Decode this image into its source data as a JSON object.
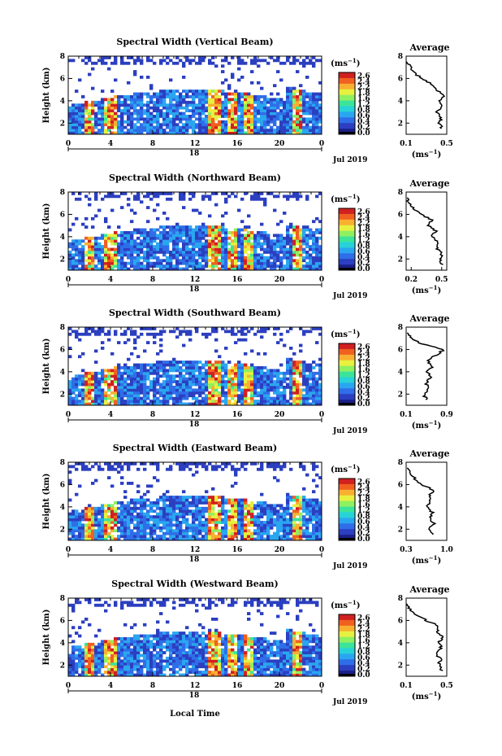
{
  "figure": {
    "colorbar": {
      "unit": "(ms",
      "unit_sup": "−1",
      "unit_close": ")",
      "ticks": [
        "2.6",
        "2.4",
        "2.2",
        "1.8",
        "1.6",
        "1.2",
        "0.8",
        "0.6",
        "0.4",
        "0.2",
        "0.0"
      ]
    },
    "date_label": "Jul 2019",
    "xlabel_bottom": "Local Time",
    "colors": {
      "background_fill": "#2a3bb0",
      "colormap": [
        "#1a1f8a",
        "#2b3fc0",
        "#2f6ee8",
        "#2aa6f0",
        "#27d2d8",
        "#3ce49a",
        "#8ff060",
        "#e8f040",
        "#f8b030",
        "#f06020",
        "#d02020"
      ]
    }
  },
  "chart_data": [
    {
      "type": "heatmap",
      "title": "Spectral Width (Vertical Beam)",
      "ylabel": "Height (km)",
      "yticks": [
        "2",
        "4",
        "6",
        "8"
      ],
      "xticks": [
        "0",
        "4",
        "8",
        "12",
        "16",
        "20",
        "0"
      ],
      "xsub": "18",
      "date_label": "Jul 2019",
      "ylim": [
        1,
        8
      ],
      "xlim": [
        0,
        24
      ],
      "profile": {
        "title": "Average",
        "xlabel": "(ms",
        "xlabel_sup": "−1",
        "xlabel_close": ")",
        "xticks": [
          "0.1",
          "0.5"
        ],
        "xlim": [
          0.1,
          0.5
        ],
        "yticks": [
          "2",
          "4",
          "6",
          "8"
        ],
        "points": [
          [
            0.45,
            1.5
          ],
          [
            0.43,
            2.0
          ],
          [
            0.44,
            2.5
          ],
          [
            0.4,
            3.0
          ],
          [
            0.45,
            3.5
          ],
          [
            0.42,
            4.0
          ],
          [
            0.48,
            4.5
          ],
          [
            0.4,
            5.0
          ],
          [
            0.35,
            5.5
          ],
          [
            0.25,
            6.0
          ],
          [
            0.18,
            6.5
          ],
          [
            0.14,
            7.0
          ],
          [
            0.11,
            7.5
          ]
        ]
      }
    },
    {
      "type": "heatmap",
      "title": "Spectral Width (Northward Beam)",
      "ylabel": "Height (km)",
      "yticks": [
        "2",
        "4",
        "6",
        "8"
      ],
      "xticks": [
        "0",
        "4",
        "8",
        "12",
        "16",
        "20",
        "0"
      ],
      "xsub": "18",
      "date_label": "Jul 2019",
      "ylim": [
        1,
        8
      ],
      "xlim": [
        0,
        24
      ],
      "profile": {
        "title": "Average",
        "xlabel": "(ms",
        "xlabel_sup": "−1",
        "xlabel_close": ")",
        "xticks": [
          "0.2",
          "0.5"
        ],
        "xlim": [
          0.15,
          0.55
        ],
        "yticks": [
          "2",
          "4",
          "6",
          "8"
        ],
        "points": [
          [
            0.5,
            1.5
          ],
          [
            0.48,
            2.0
          ],
          [
            0.5,
            2.5
          ],
          [
            0.45,
            3.0
          ],
          [
            0.47,
            3.5
          ],
          [
            0.4,
            4.0
          ],
          [
            0.44,
            4.5
          ],
          [
            0.37,
            5.0
          ],
          [
            0.4,
            5.5
          ],
          [
            0.3,
            6.0
          ],
          [
            0.22,
            6.5
          ],
          [
            0.18,
            7.0
          ],
          [
            0.16,
            7.5
          ]
        ]
      }
    },
    {
      "type": "heatmap",
      "title": "Spectral Width (Southward Beam)",
      "ylabel": "Height (km)",
      "yticks": [
        "2",
        "4",
        "6",
        "8"
      ],
      "xticks": [
        "0",
        "4",
        "8",
        "12",
        "16",
        "20",
        "0"
      ],
      "xsub": "18",
      "date_label": "Jul 2019",
      "ylim": [
        1,
        8
      ],
      "xlim": [
        0,
        24
      ],
      "profile": {
        "title": "Average",
        "xlabel": "(ms",
        "xlabel_sup": "−1",
        "xlabel_close": ")",
        "xticks": [
          "0.1",
          "0.9"
        ],
        "xlim": [
          0.1,
          0.9
        ],
        "yticks": [
          "2",
          "4",
          "6",
          "8"
        ],
        "points": [
          [
            0.5,
            1.5
          ],
          [
            0.45,
            2.0
          ],
          [
            0.55,
            2.5
          ],
          [
            0.48,
            3.0
          ],
          [
            0.6,
            3.5
          ],
          [
            0.5,
            4.0
          ],
          [
            0.62,
            4.5
          ],
          [
            0.52,
            5.0
          ],
          [
            0.7,
            5.5
          ],
          [
            0.85,
            6.0
          ],
          [
            0.4,
            6.5
          ],
          [
            0.2,
            7.0
          ],
          [
            0.12,
            7.5
          ]
        ]
      }
    },
    {
      "type": "heatmap",
      "title": "Spectral Width (Eastward Beam)",
      "ylabel": "Height (km)",
      "yticks": [
        "2",
        "4",
        "6",
        "8"
      ],
      "xticks": [
        "0",
        "4",
        "8",
        "12",
        "16",
        "20",
        "0"
      ],
      "xsub": "18",
      "date_label": "Jul 2019",
      "ylim": [
        1,
        8
      ],
      "xlim": [
        0,
        24
      ],
      "profile": {
        "title": "Average",
        "xlabel": "(ms",
        "xlabel_sup": "−1",
        "xlabel_close": ")",
        "xticks": [
          "0.3",
          "1.0"
        ],
        "xlim": [
          0.3,
          1.0
        ],
        "yticks": [
          "2",
          "4",
          "6",
          "8"
        ],
        "points": [
          [
            0.75,
            1.5
          ],
          [
            0.7,
            2.0
          ],
          [
            0.78,
            2.5
          ],
          [
            0.7,
            3.0
          ],
          [
            0.75,
            3.5
          ],
          [
            0.65,
            4.0
          ],
          [
            0.72,
            4.5
          ],
          [
            0.7,
            5.0
          ],
          [
            0.78,
            5.5
          ],
          [
            0.55,
            6.0
          ],
          [
            0.45,
            6.5
          ],
          [
            0.38,
            7.0
          ],
          [
            0.32,
            7.5
          ]
        ]
      }
    },
    {
      "type": "heatmap",
      "title": "Spectral Width (Westward Beam)",
      "ylabel": "Height (km)",
      "yticks": [
        "2",
        "4",
        "6",
        "8"
      ],
      "xticks": [
        "0",
        "4",
        "8",
        "12",
        "16",
        "20",
        "0"
      ],
      "xsub": "18",
      "date_label": "Jul 2019",
      "ylim": [
        1,
        8
      ],
      "xlim": [
        0,
        24
      ],
      "profile": {
        "title": "Average",
        "xlabel": "(ms",
        "xlabel_sup": "−1",
        "xlabel_close": ")",
        "xticks": [
          "0.1",
          "0.5"
        ],
        "xlim": [
          0.1,
          0.5
        ],
        "yticks": [
          "2",
          "4",
          "6",
          "8"
        ],
        "points": [
          [
            0.45,
            1.5
          ],
          [
            0.42,
            2.0
          ],
          [
            0.44,
            2.5
          ],
          [
            0.4,
            3.0
          ],
          [
            0.45,
            3.5
          ],
          [
            0.42,
            4.0
          ],
          [
            0.47,
            4.5
          ],
          [
            0.4,
            5.0
          ],
          [
            0.42,
            5.5
          ],
          [
            0.3,
            6.0
          ],
          [
            0.2,
            6.5
          ],
          [
            0.14,
            7.0
          ],
          [
            0.11,
            7.5
          ]
        ]
      }
    }
  ]
}
